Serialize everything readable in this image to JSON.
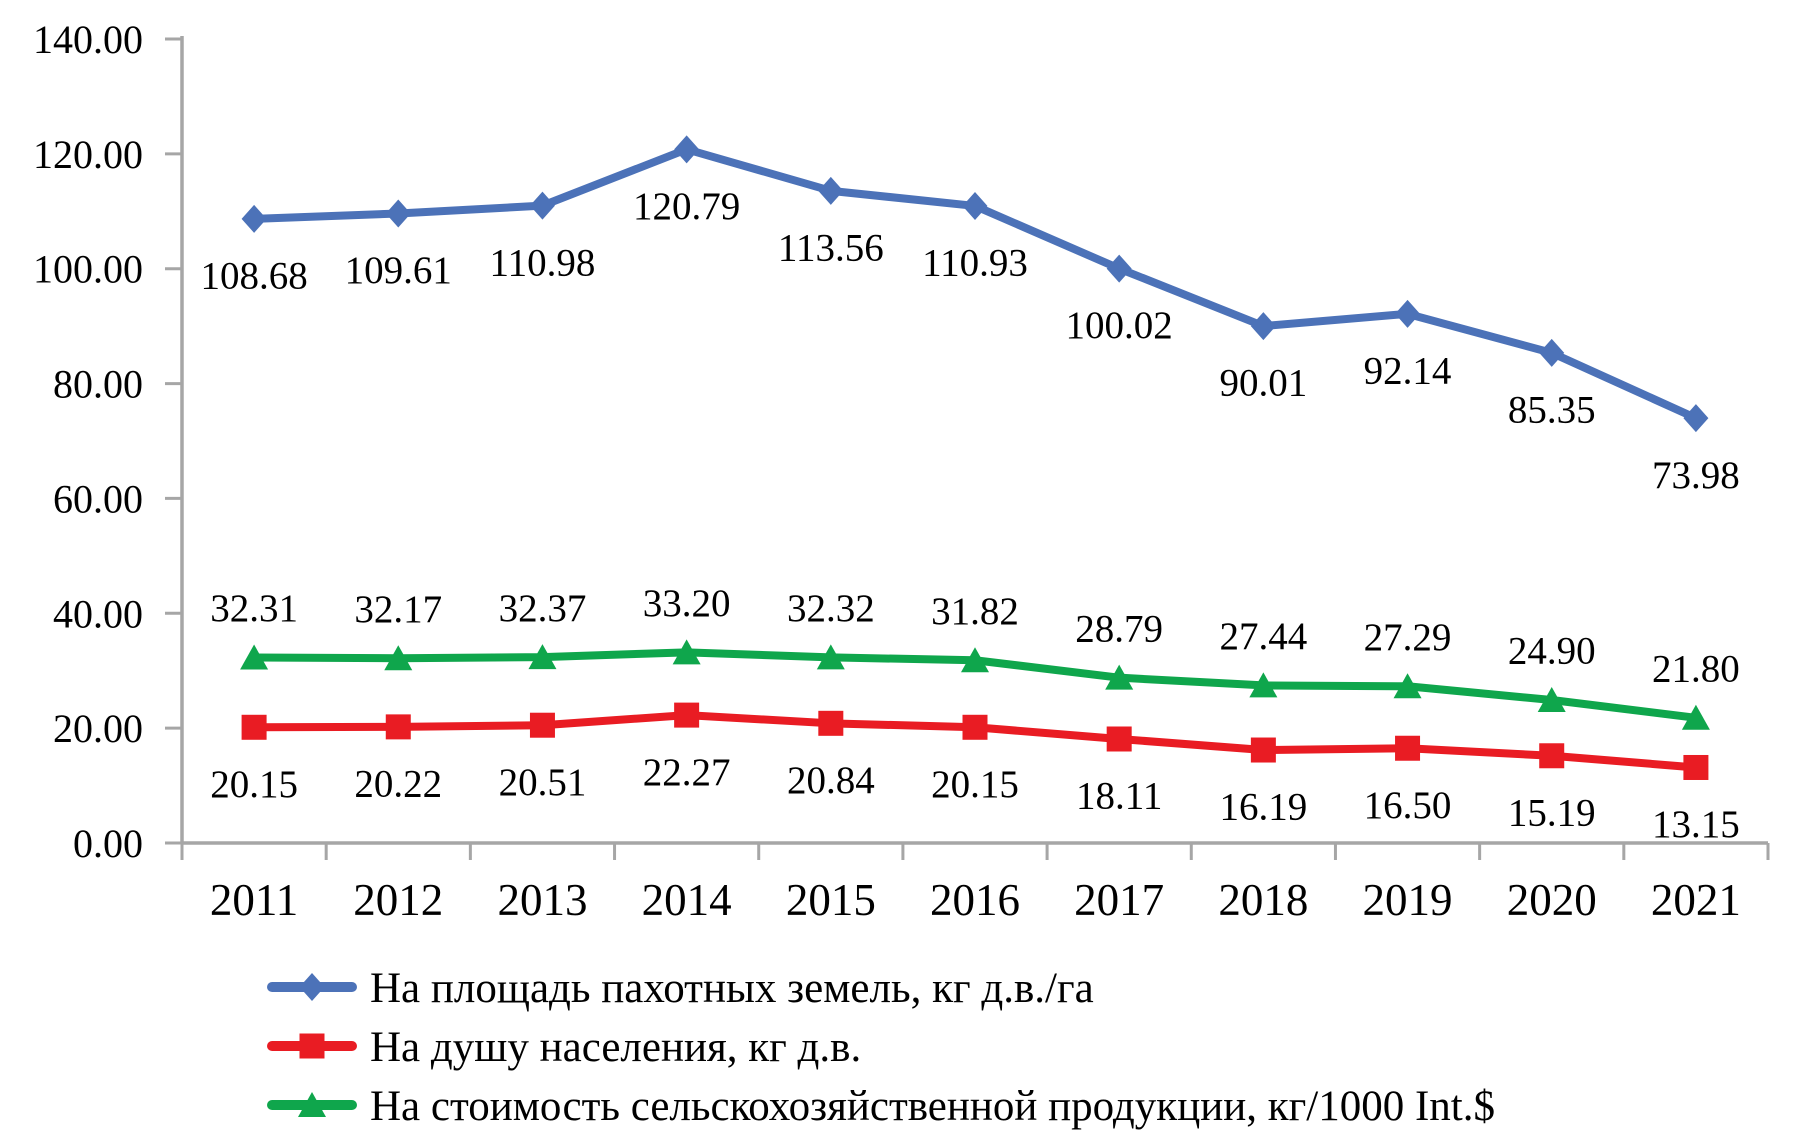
{
  "chart_data": {
    "type": "line",
    "title": "",
    "xlabel": "",
    "ylabel": "",
    "categories": [
      "2011",
      "2012",
      "2013",
      "2014",
      "2015",
      "2016",
      "2017",
      "2018",
      "2019",
      "2020",
      "2021"
    ],
    "series": [
      {
        "name": "На площадь пахотных земель, кг д.в./га",
        "marker": "diamond",
        "color": "#4C72B8",
        "label_position": "below",
        "values": [
          108.68,
          109.61,
          110.98,
          120.79,
          113.56,
          110.93,
          100.02,
          90.01,
          92.14,
          85.35,
          73.98
        ]
      },
      {
        "name": "На душу населения, кг д.в.",
        "marker": "square",
        "color": "#E91C23",
        "label_position": "below",
        "values": [
          20.15,
          20.22,
          20.51,
          22.27,
          20.84,
          20.15,
          18.11,
          16.19,
          16.5,
          15.19,
          13.15
        ]
      },
      {
        "name": "На стоимость сельскохозяйственной продукции, кг/1000 Int.$",
        "marker": "triangle",
        "color": "#0FA64C",
        "label_position": "above",
        "values": [
          32.31,
          32.17,
          32.37,
          33.2,
          32.32,
          31.82,
          28.79,
          27.44,
          27.29,
          24.9,
          21.8
        ]
      }
    ],
    "ylim": [
      0,
      140
    ],
    "ytick_step": 20,
    "ytick_decimals": 2,
    "data_label_decimals": 2,
    "grid": false,
    "legend_position": "bottom-left",
    "axis_color": "#A6A6A6",
    "text_color": "#000000",
    "background_color": "#FFFFFF"
  }
}
